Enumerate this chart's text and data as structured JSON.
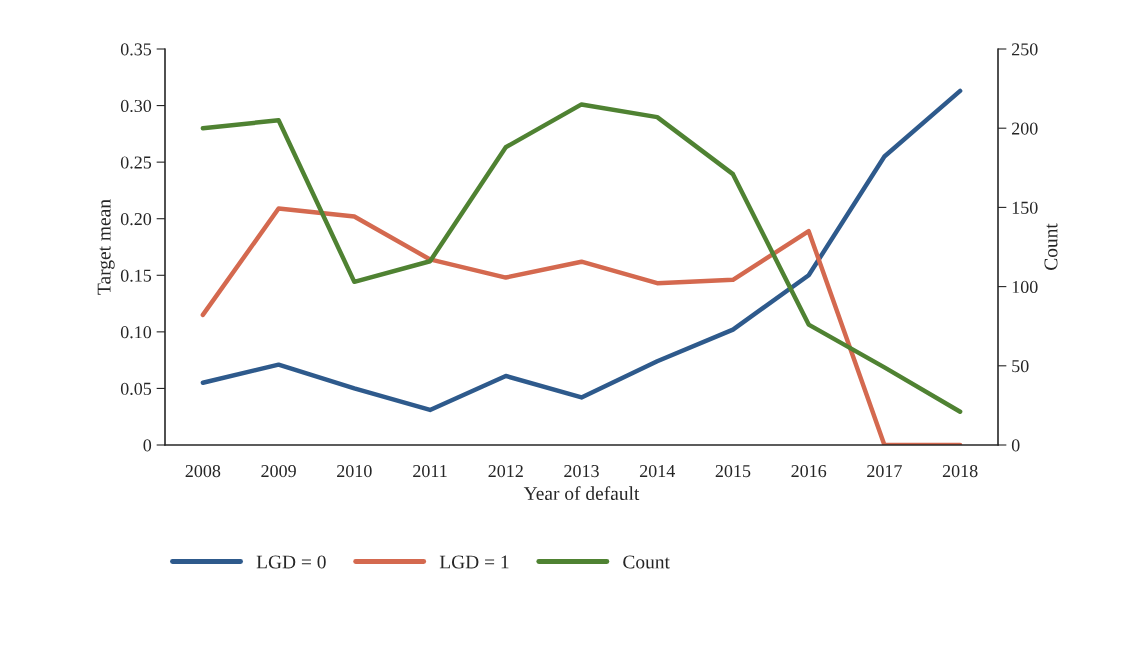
{
  "chart_data": {
    "type": "line",
    "xlabel": "Year of default",
    "ylabel": "Target mean",
    "y2label": "Count",
    "categories": [
      "2008",
      "2009",
      "2010",
      "2011",
      "2012",
      "2013",
      "2014",
      "2015",
      "2016",
      "2017",
      "2018"
    ],
    "series": [
      {
        "name": "LGD = 0",
        "color": "#2e5a8c",
        "values": [
          0.055,
          0.071,
          0.05,
          0.031,
          0.061,
          0.042,
          0.074,
          0.102,
          0.15,
          0.255,
          0.313
        ]
      },
      {
        "name": "LGD = 1",
        "color": "#d4694f",
        "values": [
          0.115,
          0.209,
          0.202,
          0.164,
          0.148,
          0.162,
          0.143,
          0.146,
          0.189,
          0,
          0
        ]
      },
      {
        "name": "Count",
        "color": "#4f8232",
        "axis": "y2",
        "values": [
          200,
          205,
          103,
          116,
          188,
          215,
          207,
          171,
          76,
          49,
          21
        ]
      }
    ],
    "ylim": [
      0,
      0.35
    ],
    "yticks": [
      {
        "value": 0,
        "label": "0"
      },
      {
        "value": 0.05,
        "label": "0.05"
      },
      {
        "value": 0.1,
        "label": "0.10"
      },
      {
        "value": 0.15,
        "label": "0.15"
      },
      {
        "value": 0.2,
        "label": "0.20"
      },
      {
        "value": 0.25,
        "label": "0.25"
      },
      {
        "value": 0.3,
        "label": "0.30"
      },
      {
        "value": 0.35,
        "label": "0.35"
      }
    ],
    "y2lim": [
      0,
      250
    ],
    "y2ticks": [
      0,
      50,
      100,
      150,
      200,
      250
    ],
    "grid": false,
    "legend": "bottom left",
    "marker": "none",
    "line_style": "solid"
  }
}
